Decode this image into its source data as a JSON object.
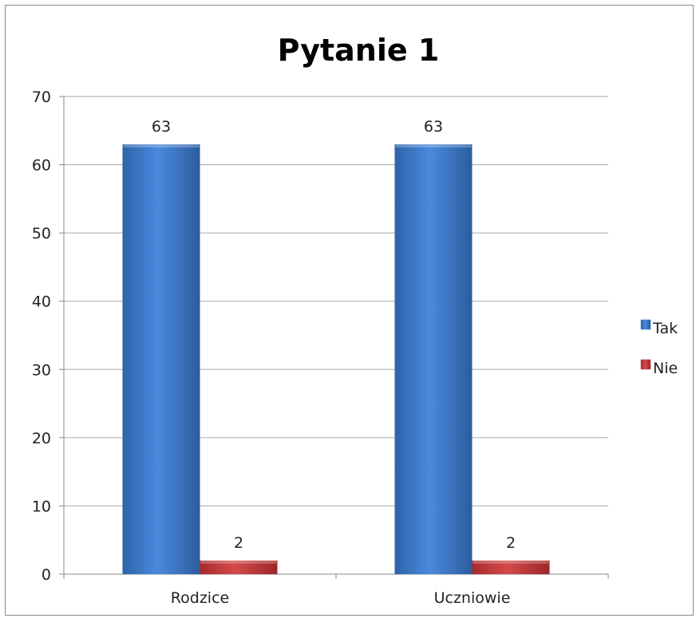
{
  "chart_data": {
    "type": "bar",
    "title": "Pytanie 1",
    "xlabel": "",
    "ylabel": "",
    "ylim": [
      0,
      70
    ],
    "yticks": [
      0,
      10,
      20,
      30,
      40,
      50,
      60,
      70
    ],
    "grid": true,
    "legend_position": "right",
    "categories": [
      "Rodzice",
      "Uczniowie"
    ],
    "series": [
      {
        "name": "Tak",
        "values": [
          63,
          63
        ],
        "color": "#3f7fd0"
      },
      {
        "name": "Nie",
        "values": [
          2,
          2
        ],
        "color": "#c0393a"
      }
    ],
    "data_labels": true
  }
}
